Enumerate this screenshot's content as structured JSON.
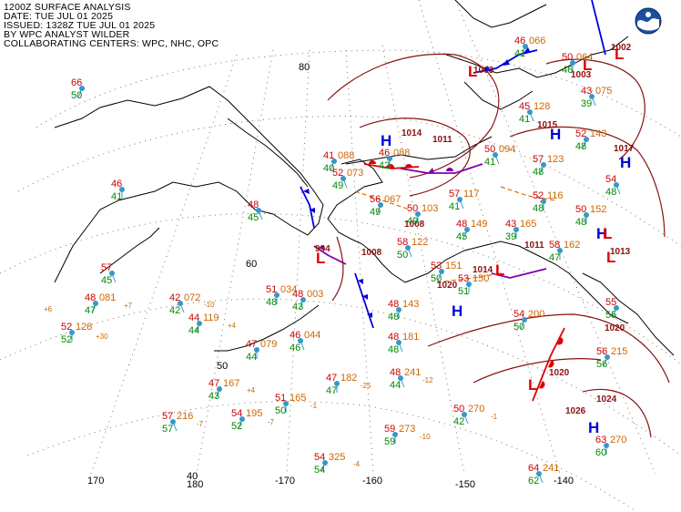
{
  "header": {
    "lines": [
      "1200Z SURFACE ANALYSIS",
      "DATE: TUE JUL 01 2025",
      "ISSUED: 1328Z TUE JUL 01 2025",
      "BY WPC ANALYST WILDER",
      "COLLABORATING CENTERS: WPC, NHC, OPC"
    ]
  },
  "logo": {
    "text": "NOAA"
  },
  "colors": {
    "low": "#dd0000",
    "high": "#0000dd",
    "isobar": "#8b1010",
    "temp": "#cc0000",
    "dew": "#008800",
    "pressure": "#cc6600",
    "station": "#3399cc",
    "grid": "#555555"
  },
  "grid_labels": [
    {
      "id": "lat80",
      "text": "80"
    },
    {
      "id": "lat60",
      "text": "60"
    },
    {
      "id": "lat50",
      "text": "50"
    },
    {
      "id": "lat40",
      "text": "40"
    },
    {
      "id": "lon170",
      "text": "170"
    },
    {
      "id": "lon180",
      "text": "180"
    },
    {
      "id": "lon-170",
      "text": "-170"
    },
    {
      "id": "lon-160",
      "text": "-160"
    },
    {
      "id": "lon-150",
      "text": "-150"
    },
    {
      "id": "lon-140",
      "text": "-140"
    }
  ],
  "systems": [
    {
      "id": "h1",
      "type": "H"
    },
    {
      "id": "h2",
      "type": "H"
    },
    {
      "id": "h3",
      "type": "H"
    },
    {
      "id": "h4",
      "type": "H"
    },
    {
      "id": "h5",
      "type": "H"
    },
    {
      "id": "h6",
      "type": "H"
    },
    {
      "id": "l1",
      "type": "L"
    },
    {
      "id": "l2",
      "type": "L"
    },
    {
      "id": "l3",
      "type": "L"
    },
    {
      "id": "l4",
      "type": "L"
    },
    {
      "id": "l5",
      "type": "L"
    },
    {
      "id": "l6",
      "type": "L"
    },
    {
      "id": "l7",
      "type": "L"
    },
    {
      "id": "l8",
      "type": "L"
    }
  ],
  "pressure_labels": [
    {
      "id": "p1",
      "text": "1002"
    },
    {
      "id": "p2",
      "text": "1003"
    },
    {
      "id": "p3",
      "text": "1003"
    },
    {
      "id": "p4",
      "text": "1015"
    },
    {
      "id": "p5",
      "text": "1017"
    },
    {
      "id": "p6",
      "text": "1014"
    },
    {
      "id": "p7",
      "text": "1011"
    },
    {
      "id": "p8",
      "text": "1014"
    },
    {
      "id": "p9",
      "text": "1011"
    },
    {
      "id": "p10",
      "text": "1013"
    },
    {
      "id": "p11",
      "text": "1020"
    },
    {
      "id": "p12",
      "text": "1020"
    },
    {
      "id": "p13",
      "text": "1020"
    },
    {
      "id": "p14",
      "text": "1026"
    },
    {
      "id": "p15",
      "text": "1024"
    },
    {
      "id": "p16",
      "text": "994"
    },
    {
      "id": "p17",
      "text": "1008"
    },
    {
      "id": "p18",
      "text": "1008"
    }
  ],
  "stations": [
    {
      "id": "s1",
      "t": "66",
      "td": "50",
      "p": ""
    },
    {
      "id": "s2",
      "t": "46",
      "td": "41",
      "p": ""
    },
    {
      "id": "s3",
      "t": "57",
      "td": "45",
      "p": ""
    },
    {
      "id": "s4",
      "t": "48",
      "td": "47",
      "p": "081"
    },
    {
      "id": "s5",
      "t": "52",
      "td": "52",
      "p": "128"
    },
    {
      "id": "s6",
      "t": "42",
      "td": "42",
      "p": "072"
    },
    {
      "id": "s7",
      "t": "44",
      "td": "44",
      "p": "119"
    },
    {
      "id": "s8",
      "t": "47",
      "td": "44",
      "p": "079"
    },
    {
      "id": "s9",
      "t": "46",
      "td": "46",
      "p": "044"
    },
    {
      "id": "s10",
      "t": "47",
      "td": "43",
      "p": "167"
    },
    {
      "id": "s11",
      "t": "51",
      "td": "50",
      "p": "165"
    },
    {
      "id": "s12",
      "t": "57",
      "td": "57",
      "p": "216"
    },
    {
      "id": "s13",
      "t": "54",
      "td": "52",
      "p": "195"
    },
    {
      "id": "s14",
      "t": "47",
      "td": "47",
      "p": "182"
    },
    {
      "id": "s15",
      "t": "48",
      "td": "44",
      "p": "241"
    },
    {
      "id": "s16",
      "t": "54",
      "td": "54",
      "p": "325"
    },
    {
      "id": "s17",
      "t": "59",
      "td": "59",
      "p": "273"
    },
    {
      "id": "s18",
      "t": "50",
      "td": "42",
      "p": "270"
    },
    {
      "id": "s19",
      "t": "48",
      "td": "43",
      "p": "003"
    },
    {
      "id": "s20",
      "t": "51",
      "td": "48",
      "p": "034"
    },
    {
      "id": "s21",
      "t": "48",
      "td": "45",
      "p": ""
    },
    {
      "id": "s22",
      "t": "41",
      "td": "40",
      "p": "088"
    },
    {
      "id": "s23",
      "t": "46",
      "td": "42",
      "p": "088"
    },
    {
      "id": "s24",
      "t": "52",
      "td": "49",
      "p": "073"
    },
    {
      "id": "s25",
      "t": "56",
      "td": "49",
      "p": "067"
    },
    {
      "id": "s26",
      "t": "50",
      "td": "49",
      "p": "103"
    },
    {
      "id": "s27",
      "t": "57",
      "td": "41",
      "p": "117"
    },
    {
      "id": "s28",
      "t": "48",
      "td": "45",
      "p": "149"
    },
    {
      "id": "s29",
      "t": "43",
      "td": "39",
      "p": "165"
    },
    {
      "id": "s30",
      "t": "58",
      "td": "50",
      "p": "122"
    },
    {
      "id": "s31",
      "t": "53",
      "td": "50",
      "p": "151"
    },
    {
      "id": "s32",
      "t": "53",
      "td": "51",
      "p": "150"
    },
    {
      "id": "s33",
      "t": "48",
      "td": "48",
      "p": "181"
    },
    {
      "id": "s34",
      "t": "54",
      "td": "50",
      "p": "200"
    },
    {
      "id": "s35",
      "t": "58",
      "td": "47",
      "p": "162"
    },
    {
      "id": "s36",
      "t": "50",
      "td": "41",
      "p": "094"
    },
    {
      "id": "s37",
      "t": "57",
      "td": "48",
      "p": "123"
    },
    {
      "id": "s38",
      "t": "52",
      "td": "48",
      "p": "116"
    },
    {
      "id": "s39",
      "t": "45",
      "td": "41",
      "p": "128"
    },
    {
      "id": "s40",
      "t": "46",
      "td": "41",
      "p": "066"
    },
    {
      "id": "s41",
      "t": "50",
      "td": "46",
      "p": "064"
    },
    {
      "id": "s42",
      "t": "43",
      "td": "39",
      "p": "075"
    },
    {
      "id": "s43",
      "t": "52",
      "td": "48",
      "p": "143"
    },
    {
      "id": "s44",
      "t": "50",
      "td": "48",
      "p": "152"
    },
    {
      "id": "s45",
      "t": "54",
      "td": "48",
      "p": ""
    },
    {
      "id": "s46",
      "t": "56",
      "td": "56",
      "p": "215"
    },
    {
      "id": "s47",
      "t": "63",
      "td": "60",
      "p": "270"
    },
    {
      "id": "s48",
      "t": "64",
      "td": "62",
      "p": "241"
    },
    {
      "id": "s49",
      "t": "55",
      "td": "55",
      "p": ""
    },
    {
      "id": "s50",
      "t": "48",
      "td": "48",
      "p": "143"
    }
  ],
  "misc_text": [
    {
      "id": "m1",
      "text": "+6"
    },
    {
      "id": "m2",
      "text": "+7"
    },
    {
      "id": "m3",
      "text": "+30"
    },
    {
      "id": "m4",
      "text": "-10"
    },
    {
      "id": "m5",
      "text": "+4"
    },
    {
      "id": "m6",
      "text": "+4"
    },
    {
      "id": "m7",
      "text": "-7"
    },
    {
      "id": "m8",
      "text": "-7"
    },
    {
      "id": "m9",
      "text": "-1"
    },
    {
      "id": "m10",
      "text": "-25"
    },
    {
      "id": "m11",
      "text": "-12"
    },
    {
      "id": "m12",
      "text": "-10"
    },
    {
      "id": "m13",
      "text": "-1"
    },
    {
      "id": "m14",
      "text": "-4"
    }
  ]
}
